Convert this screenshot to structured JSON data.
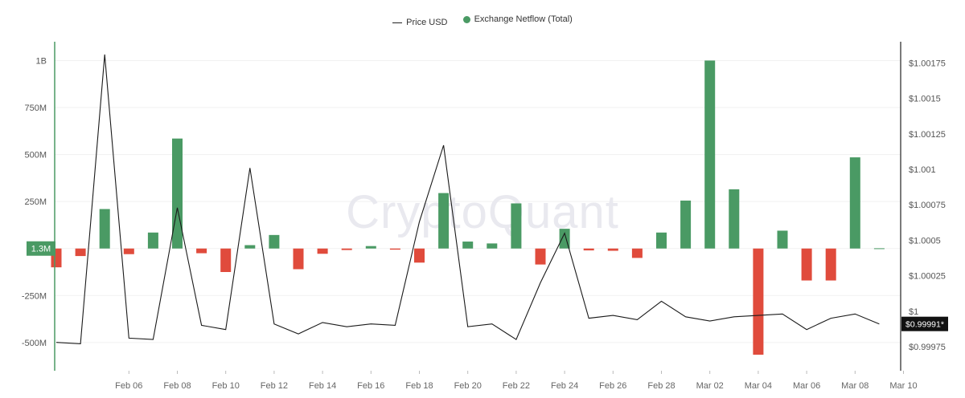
{
  "legend": {
    "price_label": "Price USD",
    "netflow_label": "Exchange Netflow (Total)"
  },
  "watermark": "CryptoQuant",
  "current_netflow_badge": "1.3M",
  "current_price_badge": "$0.99991*",
  "colors": {
    "positive": "#4a9a64",
    "negative": "#e04b3c",
    "price_line": "#1a1a1a",
    "left_axis": "#4a9a64",
    "badge_dark": "#111111"
  },
  "chart_data": {
    "type": "bar",
    "x_tick_labels": [
      "Feb 06",
      "Feb 08",
      "Feb 10",
      "Feb 12",
      "Feb 14",
      "Feb 16",
      "Feb 18",
      "Feb 20",
      "Feb 22",
      "Feb 24",
      "Feb 26",
      "Feb 28",
      "Mar 02",
      "Mar 04",
      "Mar 06",
      "Mar 08",
      "Mar 10"
    ],
    "left_ticks": [
      "1B",
      "750M",
      "500M",
      "250M",
      "-250M",
      "-500M"
    ],
    "left_tick_values": [
      1000000000,
      750000000,
      500000000,
      250000000,
      -250000000,
      -500000000
    ],
    "right_ticks": [
      "$1.00175",
      "$1.0015",
      "$1.00125",
      "$1.001",
      "$1.00075",
      "$1.0005",
      "$1.00025",
      "$1",
      "$0.99975"
    ],
    "right_tick_values": [
      1.00175,
      1.0015,
      1.00125,
      1.001,
      1.00075,
      1.0005,
      1.00025,
      1.0,
      0.99975
    ],
    "left_ylim": [
      -650000000,
      1100000000
    ],
    "right_ylim": [
      0.99958,
      1.0019
    ],
    "series": [
      {
        "name": "Exchange Netflow (Total)",
        "type": "bar",
        "start_date": "Feb 03",
        "values": [
          -100000000,
          -40000000,
          210000000,
          -30000000,
          85000000,
          585000000,
          -25000000,
          -125000000,
          18000000,
          72000000,
          -110000000,
          -28000000,
          -8000000,
          13000000,
          -6000000,
          -75000000,
          295000000,
          37000000,
          27000000,
          240000000,
          -85000000,
          105000000,
          -10000000,
          -12000000,
          -50000000,
          85000000,
          255000000,
          1000000000,
          315000000,
          -565000000,
          95000000,
          -170000000,
          -170000000,
          485000000,
          1300000
        ]
      },
      {
        "name": "Price USD",
        "type": "line",
        "start_date": "Feb 03",
        "values": [
          0.99978,
          0.99977,
          1.00181,
          0.99981,
          0.9998,
          1.00073,
          0.9999,
          0.99987,
          1.00101,
          0.99991,
          0.99984,
          0.99992,
          0.99989,
          0.99991,
          0.9999,
          1.00063,
          1.00117,
          0.99989,
          0.99991,
          0.9998,
          1.0002,
          1.00055,
          0.99995,
          0.99997,
          0.99994,
          1.00007,
          0.99996,
          0.99993,
          0.99996,
          0.99997,
          0.99998,
          0.99987,
          0.99995,
          0.99998,
          0.99991
        ]
      }
    ]
  }
}
